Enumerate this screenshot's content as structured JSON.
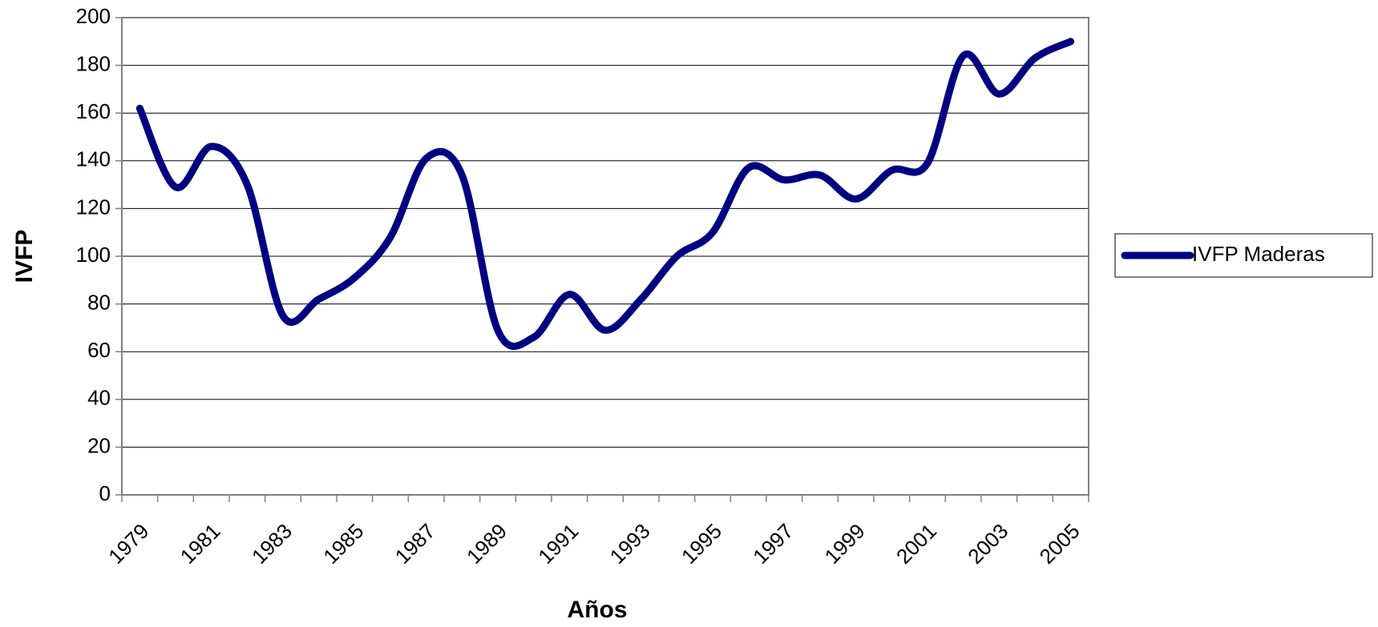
{
  "chart_data": {
    "type": "line",
    "x_label": "Años",
    "y_label": "IVFP",
    "categories": [
      "1979",
      null,
      "1981",
      null,
      "1983",
      null,
      "1985",
      null,
      "1987",
      null,
      "1989",
      null,
      "1991",
      null,
      "1993",
      null,
      "1995",
      null,
      "1997",
      null,
      "1999",
      null,
      "2001",
      null,
      "2003",
      null,
      "2005"
    ],
    "series": [
      {
        "name": "IVFP Maderas",
        "color": "#000080",
        "values": [
          162,
          129,
          146,
          130,
          75,
          82,
          91,
          108,
          141,
          134,
          69,
          66,
          84,
          69,
          82,
          100,
          110,
          137,
          132,
          134,
          124,
          136,
          139,
          184,
          168,
          183,
          190
        ]
      }
    ],
    "ylim": [
      0,
      200
    ],
    "yticks": [
      0,
      20,
      40,
      60,
      80,
      100,
      120,
      140,
      160,
      180,
      200
    ],
    "grid": true,
    "legend": "right"
  }
}
